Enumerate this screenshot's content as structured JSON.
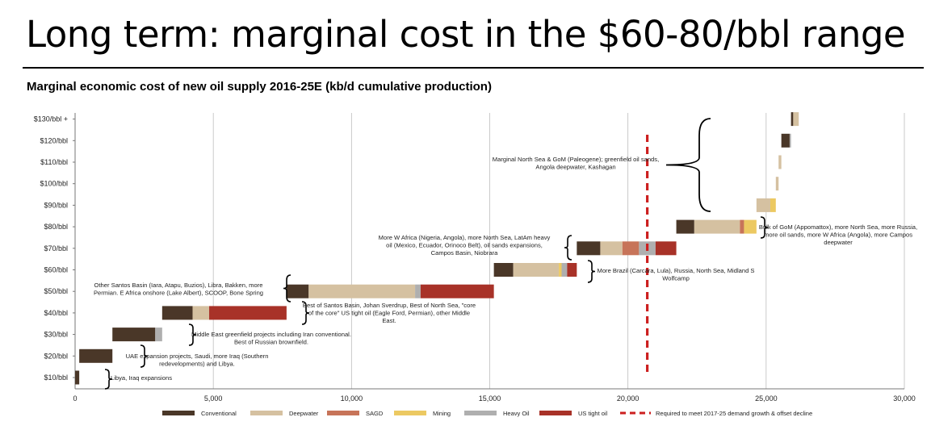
{
  "slide": {
    "title": "Long term: marginal cost in the $60-80/bbl range"
  },
  "chart_data": {
    "type": "bar",
    "subtitle": "Marginal economic cost of new oil supply 2016-25E (kb/d cumulative production)",
    "stacked": true,
    "orientation": "horizontal",
    "xlim": [
      0,
      30000
    ],
    "x_ticks": [
      0,
      5000,
      10000,
      15000,
      20000,
      25000,
      30000
    ],
    "x_tick_labels": [
      "0",
      "5,000",
      "10,000",
      "15,000",
      "20,000",
      "25,000",
      "30,000"
    ],
    "grid": {
      "vertical": true,
      "horizontal": false
    },
    "categories": [
      "$10/bbl",
      "$20/bbl",
      "$30/bbl",
      "$40/bbl",
      "$50/bbl",
      "$60/bbl",
      "$70/bbl",
      "$80/bbl",
      "$90/bbl",
      "$100/bbl",
      "$110/bbl",
      "$120/bbl",
      "$130/bbl +"
    ],
    "series": [
      {
        "name": "Conventional",
        "color": "#4a3728"
      },
      {
        "name": "Deepwater",
        "color": "#d5c1a1"
      },
      {
        "name": "SAGD",
        "color": "#c77459"
      },
      {
        "name": "Mining",
        "color": "#ecc962"
      },
      {
        "name": "Heavy Oil",
        "color": "#afafaf"
      },
      {
        "name": "US tight oil",
        "color": "#a83228"
      }
    ],
    "bars": [
      {
        "category": "$10/bbl",
        "segments": [
          [
            "Conventional",
            0,
            150
          ]
        ]
      },
      {
        "category": "$20/bbl",
        "segments": [
          [
            "Conventional",
            150,
            1350
          ]
        ]
      },
      {
        "category": "$30/bbl",
        "segments": [
          [
            "Conventional",
            1350,
            2900
          ],
          [
            "Heavy Oil",
            2900,
            3150
          ]
        ]
      },
      {
        "category": "$40/bbl",
        "segments": [
          [
            "Conventional",
            3150,
            4250
          ],
          [
            "Deepwater",
            4250,
            4850
          ],
          [
            "US tight oil",
            4850,
            7650
          ]
        ]
      },
      {
        "category": "$50/bbl",
        "segments": [
          [
            "Conventional",
            7650,
            8450
          ],
          [
            "Deepwater",
            8450,
            12300
          ],
          [
            "Heavy Oil",
            12300,
            12500
          ],
          [
            "US tight oil",
            12500,
            15150
          ]
        ]
      },
      {
        "category": "$60/bbl",
        "segments": [
          [
            "Conventional",
            15150,
            15850
          ],
          [
            "Deepwater",
            15850,
            17500
          ],
          [
            "Mining",
            17500,
            17600
          ],
          [
            "Heavy Oil",
            17600,
            17800
          ],
          [
            "US tight oil",
            17800,
            18150
          ]
        ]
      },
      {
        "category": "$70/bbl",
        "segments": [
          [
            "Conventional",
            18150,
            19000
          ],
          [
            "Deepwater",
            19000,
            19800
          ],
          [
            "SAGD",
            19800,
            20400
          ],
          [
            "Heavy Oil",
            20400,
            21000
          ],
          [
            "US tight oil",
            21000,
            21750
          ]
        ]
      },
      {
        "category": "$80/bbl",
        "segments": [
          [
            "Conventional",
            21750,
            22400
          ],
          [
            "Deepwater",
            22400,
            24050
          ],
          [
            "SAGD",
            24050,
            24200
          ],
          [
            "Mining",
            24200,
            24650
          ]
        ]
      },
      {
        "category": "$90/bbl",
        "segments": [
          [
            "Deepwater",
            24650,
            25150
          ],
          [
            "Mining",
            25150,
            25350
          ]
        ]
      },
      {
        "category": "$100/bbl",
        "segments": [
          [
            "Deepwater",
            25350,
            25450
          ]
        ]
      },
      {
        "category": "$110/bbl",
        "segments": [
          [
            "Deepwater",
            25450,
            25550
          ]
        ]
      },
      {
        "category": "$120/bbl",
        "segments": [
          [
            "Conventional",
            25550,
            25850
          ],
          [
            "Heavy Oil",
            25850,
            25900
          ]
        ]
      },
      {
        "category": "$130/bbl +",
        "segments": [
          [
            "Conventional",
            25900,
            25980
          ],
          [
            "Deepwater",
            25980,
            26180
          ]
        ]
      }
    ],
    "reference_line": {
      "name": "Required to meet 2017-25 demand growth & offset decline",
      "x": 20700,
      "color": "#cc1f1f",
      "style": "dashed"
    },
    "annotations": [
      {
        "id": "a10",
        "category": "$10/bbl",
        "lines": [
          "Libya, Iraq expansions"
        ]
      },
      {
        "id": "a20",
        "category": "$20/bbl",
        "lines": [
          "UAE expansion projects, Saudi, more Iraq (Southern",
          "redevelopments) and Libya."
        ]
      },
      {
        "id": "a30",
        "category": "$30/bbl",
        "lines": [
          "Middle East greenfield projects including Iran conventional.",
          "Best of Russian brownfield."
        ]
      },
      {
        "id": "a40",
        "category": "$40/bbl",
        "lines": [
          "Best of Santos Basin, Johan Sverdrup, Best of North Sea, \"core",
          "of the core\" US tight oil (Eagle Ford, Permian), other Middle",
          "East."
        ]
      },
      {
        "id": "a50",
        "category": "$50/bbl",
        "lines": [
          "Other Santos Basin (Iara, Atapu, Buzios), Libra, Bakken, more",
          "Permian. E Africa onshore (Lake Albert), SCOOP, Bone Spring"
        ]
      },
      {
        "id": "a60",
        "category": "$60/bbl",
        "lines": [
          "More Brazil (Carcara, Lula), Russia,  North Sea, Midland S",
          "Wolfcamp"
        ]
      },
      {
        "id": "a70",
        "category": "$70/bbl",
        "lines": [
          "More W Africa (Nigeria, Angola), more North Sea, LatAm heavy",
          "oil (Mexico, Ecuador, Orinoco Belt), oil sands expansions,",
          "Campos Basin, Niobrara"
        ]
      },
      {
        "id": "a80",
        "category": "$80/bbl",
        "lines": [
          "Bulk of GoM (Appomattox),  more North Sea, more Russia,",
          "more oil sands, more W Africa (Angola), more Campos",
          "deepwater"
        ]
      },
      {
        "id": "a90plus",
        "category": "$90/bbl - $130/bbl +",
        "lines": [
          "Marginal North Sea & GoM (Paleogene); greenfield oil sands,",
          "Angola deepwater, Kashagan"
        ]
      }
    ]
  }
}
